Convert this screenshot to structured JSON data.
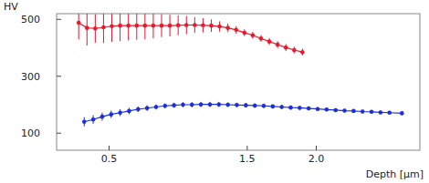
{
  "chart_data": {
    "type": "line",
    "y_label": "HV",
    "x_label": "Depth [μm]",
    "xlim": [
      0.12,
      2.75
    ],
    "ylim": [
      40,
      520
    ],
    "xticks": [
      0.5,
      1.5,
      {
        "value": 2,
        "label": "2.0"
      }
    ],
    "yticks": [
      100,
      300,
      500
    ],
    "grid": false,
    "marker": "circle",
    "series": [
      {
        "color": "#e8192c",
        "x": [
          0.28,
          0.34,
          0.4,
          0.46,
          0.52,
          0.58,
          0.64,
          0.7,
          0.76,
          0.82,
          0.88,
          0.94,
          1.0,
          1.06,
          1.12,
          1.18,
          1.24,
          1.3,
          1.36,
          1.42,
          1.48,
          1.54,
          1.6,
          1.66,
          1.72,
          1.78,
          1.84,
          1.9
        ],
        "values": [
          488,
          470,
          468,
          472,
          476,
          478,
          478,
          478,
          478,
          478,
          478,
          478,
          479,
          480,
          480,
          479,
          478,
          475,
          470,
          463,
          453,
          444,
          433,
          422,
          411,
          401,
          392,
          385
        ],
        "errors": [
          58,
          62,
          50,
          55,
          55,
          55,
          52,
          50,
          48,
          45,
          40,
          38,
          35,
          32,
          28,
          25,
          22,
          18,
          15,
          13,
          12,
          12,
          12,
          12,
          12,
          12,
          12,
          12
        ]
      },
      {
        "color": "#1d2fd6",
        "x": [
          0.32,
          0.385,
          0.45,
          0.515,
          0.58,
          0.645,
          0.71,
          0.775,
          0.84,
          0.905,
          0.97,
          1.035,
          1.1,
          1.165,
          1.23,
          1.295,
          1.36,
          1.425,
          1.49,
          1.555,
          1.62,
          1.685,
          1.75,
          1.815,
          1.88,
          1.945,
          2.01,
          2.075,
          2.14,
          2.205,
          2.27,
          2.335,
          2.4,
          2.465,
          2.53,
          2.62
        ],
        "values": [
          140,
          148,
          158,
          166,
          172,
          178,
          184,
          188,
          192,
          196,
          198,
          200,
          200,
          201,
          201,
          201,
          200,
          199,
          198,
          197,
          196,
          194,
          192,
          190,
          189,
          187,
          185,
          183,
          181,
          179,
          178,
          176,
          175,
          173,
          172,
          170
        ],
        "errors": [
          16,
          15,
          14,
          13,
          12,
          11,
          10,
          10,
          9,
          9,
          9,
          9,
          9,
          9,
          9,
          9,
          8,
          8,
          8,
          8,
          8,
          7,
          7,
          7,
          7,
          7,
          7,
          6,
          6,
          6,
          6,
          6,
          6,
          6,
          6,
          6
        ]
      }
    ]
  }
}
